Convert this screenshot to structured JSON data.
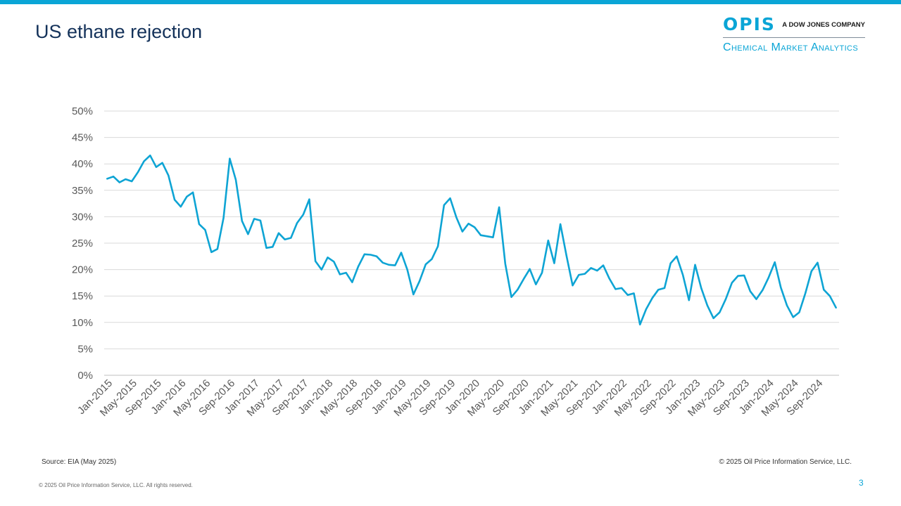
{
  "slide": {
    "title": "US ethane rejection",
    "source": "Source: EIA (May 2025)",
    "copyright": "© 2025 Oil Price Information Service, LLC.",
    "rights": "© 2025 Oil Price Information Service, LLC. All rights reserved.",
    "page_number": "3"
  },
  "logo": {
    "brand": "OPIS",
    "tagline": "A DOW JONES COMPANY",
    "division": "Chemical Market Analytics"
  },
  "colors": {
    "accent": "#0aa5d6",
    "title": "#14325a",
    "series": "#0ea4d4",
    "grid": "#d9d9d9"
  },
  "chart_data": {
    "type": "line",
    "title": "",
    "xlabel": "",
    "ylabel": "",
    "ylim": [
      0,
      50
    ],
    "y_ticks": [
      "0%",
      "5%",
      "10%",
      "15%",
      "20%",
      "25%",
      "30%",
      "35%",
      "40%",
      "45%",
      "50%"
    ],
    "x_tick_labels": [
      "Jan-2015",
      "May-2015",
      "Sep-2015",
      "Jan-2016",
      "May-2016",
      "Sep-2016",
      "Jan-2017",
      "May-2017",
      "Sep-2017",
      "Jan-2018",
      "May-2018",
      "Sep-2018",
      "Jan-2019",
      "May-2019",
      "Sep-2019",
      "Jan-2020",
      "May-2020",
      "Sep-2020",
      "Jan-2021",
      "May-2021",
      "Sep-2021",
      "Jan-2022",
      "May-2022",
      "Sep-2022",
      "Jan-2023",
      "May-2023",
      "Sep-2023",
      "Jan-2024",
      "May-2024",
      "Sep-2024"
    ],
    "x_start": "Jan-2015",
    "x_end": "Dec-2024",
    "grid": "horizontal",
    "legend": "none",
    "series": [
      {
        "values": [
          37.2,
          37.6,
          36.5,
          37.1,
          36.7,
          38.4,
          40.5,
          41.6,
          39.4,
          40.2,
          37.8,
          33.2,
          31.9,
          33.8,
          34.6,
          28.6,
          27.5,
          23.3,
          23.9,
          29.8,
          41.0,
          37.0,
          29.2,
          26.7,
          29.6,
          29.3,
          24.1,
          24.3,
          26.9,
          25.7,
          26.0,
          28.8,
          30.4,
          33.3,
          21.6,
          20.0,
          22.3,
          21.5,
          19.1,
          19.4,
          17.6,
          20.6,
          22.9,
          22.8,
          22.5,
          21.3,
          20.9,
          20.8,
          23.2,
          20.0,
          15.3,
          17.8,
          21.0,
          22.0,
          24.4,
          32.2,
          33.5,
          29.9,
          27.2,
          28.7,
          28.0,
          26.5,
          26.3,
          26.1,
          31.8,
          21.1,
          14.8,
          16.2,
          18.2,
          20.1,
          17.2,
          19.4,
          25.5,
          21.2,
          28.6,
          22.6,
          17.0,
          19.0,
          19.2,
          20.3,
          19.8,
          20.8,
          18.3,
          16.3,
          16.5,
          15.2,
          15.5,
          9.6,
          12.5,
          14.6,
          16.2,
          16.5,
          21.2,
          22.5,
          19.0,
          14.2,
          20.9,
          16.5,
          13.2,
          10.8,
          11.9,
          14.4,
          17.5,
          18.8,
          18.9,
          15.9,
          14.4,
          16.1,
          18.5,
          21.4,
          16.6,
          13.2,
          11.0,
          11.9,
          15.5,
          19.7,
          21.3,
          16.2,
          15.0,
          12.8
        ]
      }
    ]
  }
}
